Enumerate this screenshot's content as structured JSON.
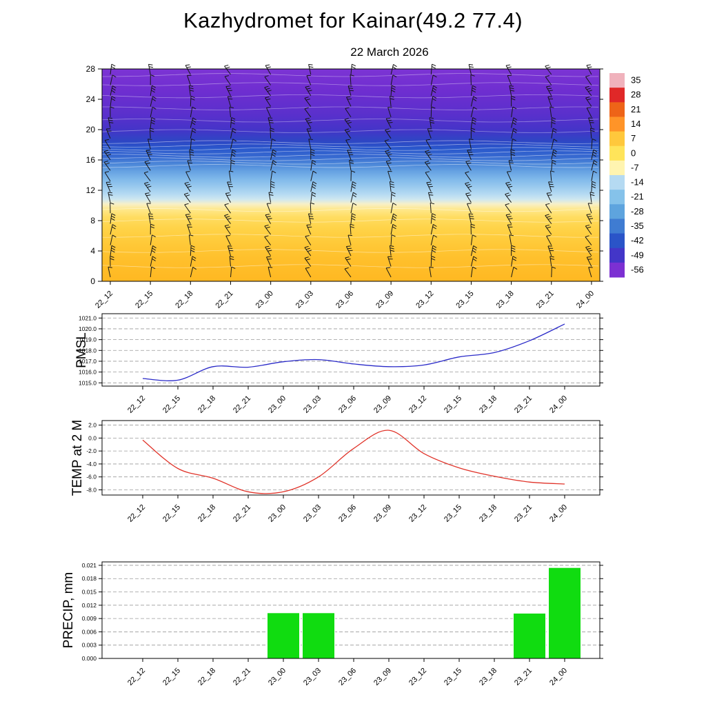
{
  "page": {
    "title": "Kazhydromet for Kainar(49.2 77.4)",
    "subtitle": "22 March 2026",
    "background": "#ffffff"
  },
  "axis_titles": {
    "pmsl": "PMSL",
    "temp": "TEMP at 2 M",
    "precip": "PRECIP, mm"
  },
  "time_labels": [
    "22_12",
    "22_15",
    "22_18",
    "22_21",
    "23_00",
    "23_03",
    "23_06",
    "23_09",
    "23_12",
    "23_15",
    "23_18",
    "23_21",
    "24_00"
  ],
  "chart_data": [
    {
      "type": "heatmap",
      "name": "upper-air temperature and wind cross-section",
      "categories": [
        "22_12",
        "22_15",
        "22_18",
        "22_21",
        "23_00",
        "23_03",
        "23_06",
        "23_09",
        "23_12",
        "23_15",
        "23_18",
        "23_21",
        "24_00"
      ],
      "ylabel": "",
      "ylim": [
        0,
        28
      ],
      "yticks": [
        0,
        4,
        8,
        12,
        16,
        20,
        24,
        28
      ],
      "gradient_stops": [
        {
          "h": 28,
          "color": "#7c34d4"
        },
        {
          "h": 25,
          "color": "#6e2ed0"
        },
        {
          "h": 22,
          "color": "#5a30cc"
        },
        {
          "h": 20,
          "color": "#4534c8"
        },
        {
          "h": 18.5,
          "color": "#2e46c4"
        },
        {
          "h": 17.5,
          "color": "#2a58cc"
        },
        {
          "h": 16.5,
          "color": "#3668d0"
        },
        {
          "h": 15.5,
          "color": "#4b86d8"
        },
        {
          "h": 14.5,
          "color": "#66a2e2"
        },
        {
          "h": 13.5,
          "color": "#7fb8ea"
        },
        {
          "h": 12.5,
          "color": "#99c9ee"
        },
        {
          "h": 11.5,
          "color": "#b5daf2"
        },
        {
          "h": 10.8,
          "color": "#cfe7f0"
        },
        {
          "h": 10.2,
          "color": "#f7f0c8"
        },
        {
          "h": 9.5,
          "color": "#ffe88c"
        },
        {
          "h": 8.5,
          "color": "#ffdd62"
        },
        {
          "h": 7,
          "color": "#ffd348"
        },
        {
          "h": 5,
          "color": "#ffc938"
        },
        {
          "h": 3,
          "color": "#ffc02c"
        },
        {
          "h": 0,
          "color": "#ffb822"
        }
      ],
      "wind_barbs": {
        "columns": 13,
        "rows": 20,
        "note": "station wind barbs, approximate"
      },
      "colorbar": {
        "labels": [
          "35",
          "28",
          "21",
          "14",
          "7",
          "0",
          "-7",
          "-14",
          "-21",
          "-28",
          "-35",
          "-42",
          "-49",
          "-56"
        ],
        "colors": [
          "#f0b2bc",
          "#e02828",
          "#ee6418",
          "#ff9428",
          "#ffc83c",
          "#ffe45a",
          "#fff4b0",
          "#b5daf2",
          "#85c2ea",
          "#5ea4de",
          "#3f7cd2",
          "#2a54c8",
          "#4336c8",
          "#7c30d2"
        ]
      }
    },
    {
      "type": "line",
      "title": "PMSL",
      "categories": [
        "22_12",
        "22_15",
        "22_18",
        "22_21",
        "23_00",
        "23_03",
        "23_06",
        "23_09",
        "23_12",
        "23_15",
        "23_18",
        "23_21",
        "24_00"
      ],
      "ylim": [
        1014.7,
        1021.4
      ],
      "yticks": [
        1015.0,
        1016.0,
        1017.0,
        1018.0,
        1019.0,
        1020.0,
        1021.0
      ],
      "ytick_labels": [
        "1015.0",
        "1016.0",
        "1017.0",
        "1018.0",
        "1019.0",
        "1020.0",
        "1021.0"
      ],
      "values": [
        1015.4,
        1015.25,
        1016.5,
        1016.45,
        1016.95,
        1017.15,
        1016.75,
        1016.5,
        1016.65,
        1017.4,
        1017.8,
        1018.9,
        1020.45
      ],
      "line_color": "#2929c8",
      "grid": "dashed-horizontal"
    },
    {
      "type": "line",
      "title": "TEMP at 2 M",
      "categories": [
        "22_12",
        "22_15",
        "22_18",
        "22_21",
        "23_00",
        "23_03",
        "23_06",
        "23_09",
        "23_12",
        "23_15",
        "23_18",
        "23_21",
        "24_00"
      ],
      "ylim": [
        -8.8,
        2.7
      ],
      "yticks": [
        2,
        0,
        -2,
        -4,
        -6,
        -8
      ],
      "ytick_labels": [
        "2.0",
        "0.0",
        "-2.0",
        "-4.0",
        "-6.0",
        "-8.0"
      ],
      "values": [
        -0.3,
        -4.7,
        -6.2,
        -8.3,
        -8.3,
        -6.0,
        -1.6,
        1.2,
        -2.4,
        -4.6,
        -5.9,
        -6.8,
        -7.1
      ],
      "line_color": "#e03228",
      "grid": "dashed-horizontal"
    },
    {
      "type": "bar",
      "title": "PRECIP, mm",
      "categories": [
        "22_12",
        "22_15",
        "22_18",
        "22_21",
        "23_00",
        "23_03",
        "23_06",
        "23_09",
        "23_12",
        "23_15",
        "23_18",
        "23_21",
        "24_00"
      ],
      "ylim": [
        0,
        0.02177
      ],
      "yticks": [
        0,
        0.003,
        0.006,
        0.009,
        0.012,
        0.015,
        0.018,
        0.021
      ],
      "ytick_labels": [
        "0.000",
        "0.003",
        "0.006",
        "0.009",
        "0.012",
        "0.015",
        "0.018",
        "0.021"
      ],
      "values": [
        0,
        0,
        0,
        0,
        0.0103,
        0.0103,
        0,
        0,
        0,
        0,
        0,
        0.0102,
        0.0205
      ],
      "bar_color": "#10dc10",
      "grid": "dashed-horizontal"
    }
  ]
}
